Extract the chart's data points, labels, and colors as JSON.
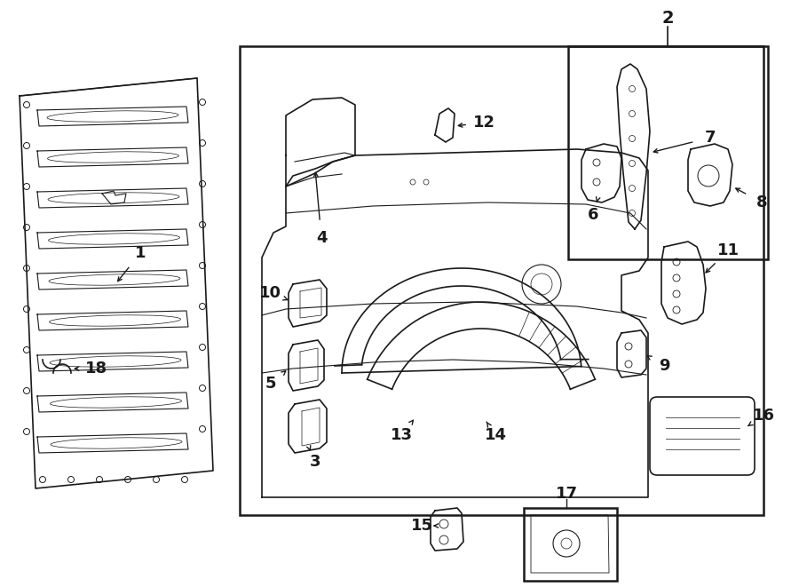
{
  "bg_color": "#ffffff",
  "line_color": "#1a1a1a",
  "fig_width": 9.0,
  "fig_height": 6.61
}
